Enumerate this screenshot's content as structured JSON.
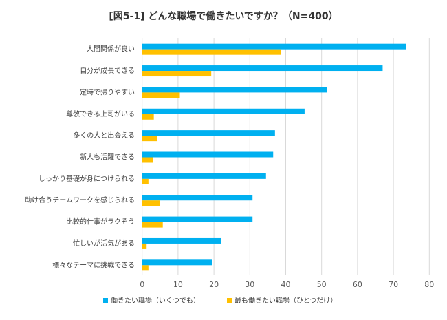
{
  "chart_data": {
    "type": "bar",
    "orientation": "horizontal",
    "title": "[図5-1] どんな職場で働きたいですか？（N=400）",
    "categories": [
      "人間関係が良い",
      "自分が成長できる",
      "定時で帰りやすい",
      "尊敬できる上司がいる",
      "多くの人と出会える",
      "新人も活躍できる",
      "しっかり基礎が身につけられる",
      "助け合うチームワークを感じられる",
      "比較的仕事がラクそう",
      "忙しいが活気がある",
      "様々なテーマに挑戦できる"
    ],
    "series": [
      {
        "name": "働きたい職場（いくつでも）",
        "color": "#00B0F0",
        "values": [
          73.5,
          67,
          51.5,
          45.25,
          37,
          36.5,
          34.5,
          30.75,
          30.75,
          22,
          19.5
        ]
      },
      {
        "name": "最も働きたい職場（ひとつだけ）",
        "color": "#FFC000",
        "values": [
          38.75,
          19.25,
          10.5,
          3.25,
          4.25,
          3,
          1.75,
          5,
          5.75,
          1.25,
          1.75
        ]
      }
    ],
    "xlim": [
      0,
      80
    ],
    "xticks": [
      "0",
      "10",
      "20",
      "30",
      "40",
      "50",
      "60",
      "70",
      "80"
    ],
    "grid": true,
    "legend": "bottom"
  }
}
